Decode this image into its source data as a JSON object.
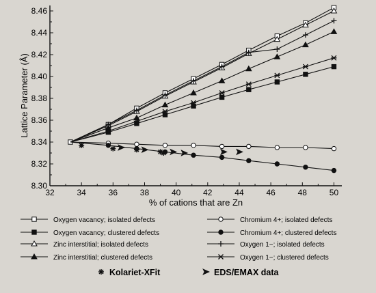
{
  "chart_data": {
    "type": "line",
    "title": "",
    "xlabel": "% of cations that are Zn",
    "ylabel": "Lattice Parameter (Å)",
    "xlim": [
      32,
      50.5
    ],
    "ylim": [
      8.3,
      8.465
    ],
    "x_ticks": [
      "32",
      "34",
      "36",
      "38",
      "40",
      "42",
      "44",
      "46",
      "48",
      "50"
    ],
    "y_ticks": [
      "8.30",
      "8.32",
      "8.34",
      "8.36",
      "8.38",
      "8.40",
      "8.42",
      "8.44",
      "8.46"
    ],
    "series": [
      {
        "name": "Oxygen vacancy; isolated defects",
        "marker": "square-open",
        "x": [
          33.3,
          35.7,
          37.5,
          39.3,
          41.1,
          42.9,
          44.6,
          46.4,
          48.2,
          50.0
        ],
        "y": [
          8.34,
          8.356,
          8.371,
          8.385,
          8.398,
          8.411,
          8.424,
          8.437,
          8.449,
          8.463
        ]
      },
      {
        "name": "Oxygen vacancy; clustered defects",
        "marker": "square-filled",
        "x": [
          33.3,
          35.7,
          37.5,
          39.3,
          41.1,
          42.9,
          44.6,
          46.4,
          48.2,
          50.0
        ],
        "y": [
          8.34,
          8.349,
          8.357,
          8.365,
          8.373,
          8.381,
          8.388,
          8.395,
          8.402,
          8.409
        ]
      },
      {
        "name": "Zinc interstitial; isolated defects",
        "marker": "triangle-open",
        "x": [
          33.3,
          35.7,
          37.5,
          39.3,
          41.1,
          42.9,
          44.6,
          46.4,
          48.2,
          50.0
        ],
        "y": [
          8.34,
          8.355,
          8.368,
          8.382,
          8.395,
          8.408,
          8.421,
          8.434,
          8.447,
          8.46
        ]
      },
      {
        "name": "Zinc interstitial; clustered defects",
        "marker": "triangle-filled",
        "x": [
          33.3,
          35.7,
          37.5,
          39.3,
          41.1,
          42.9,
          44.6,
          46.4,
          48.2,
          50.0
        ],
        "y": [
          8.34,
          8.353,
          8.362,
          8.374,
          8.385,
          8.396,
          8.407,
          8.418,
          8.429,
          8.441
        ]
      },
      {
        "name": "Chromium 4+; isolated defects",
        "marker": "circle-open",
        "x": [
          33.3,
          35.7,
          37.5,
          39.3,
          41.1,
          42.9,
          44.6,
          46.4,
          48.2,
          50.0
        ],
        "y": [
          8.34,
          8.339,
          8.338,
          8.337,
          8.337,
          8.336,
          8.336,
          8.335,
          8.335,
          8.334
        ]
      },
      {
        "name": "Chromium 4+; clustered defects",
        "marker": "circle-filled",
        "x": [
          33.3,
          35.7,
          37.5,
          39.3,
          41.1,
          42.9,
          44.6,
          46.4,
          48.2,
          50.0
        ],
        "y": [
          8.34,
          8.337,
          8.334,
          8.331,
          8.328,
          8.326,
          8.323,
          8.32,
          8.317,
          8.314
        ]
      },
      {
        "name": "Oxygen 1−; isolated defects",
        "marker": "plus",
        "x": [
          33.3,
          35.7,
          37.5,
          39.3,
          41.1,
          42.9,
          44.6,
          46.4,
          48.2,
          50.0
        ],
        "y": [
          8.34,
          8.356,
          8.369,
          8.383,
          8.396,
          8.409,
          8.422,
          8.425,
          8.438,
          8.451
        ]
      },
      {
        "name": "Oxygen 1−; clustered defects",
        "marker": "star",
        "x": [
          33.3,
          35.7,
          37.5,
          39.3,
          41.1,
          42.9,
          44.6,
          46.4,
          48.2,
          50.0
        ],
        "y": [
          8.34,
          8.35,
          8.359,
          8.368,
          8.376,
          8.385,
          8.393,
          8.401,
          8.409,
          8.417
        ]
      },
      {
        "name": "Kolariet-XFit",
        "marker": "asterisk",
        "x": [
          34.0,
          36.0,
          37.5,
          39.0,
          39.2
        ],
        "y": [
          8.337,
          8.334,
          8.333,
          8.331,
          8.33
        ]
      },
      {
        "name": "EDS/EMAX data",
        "marker": "arrowhead",
        "x": [
          36.5,
          38.0,
          39.8,
          40.5,
          43.0,
          44.0
        ],
        "y": [
          8.335,
          8.333,
          8.331,
          8.33,
          8.331,
          8.331
        ]
      }
    ],
    "legend": {
      "placement": "bottom",
      "entries": [
        {
          "label": "Oxygen vacancy; isolated defects",
          "marker": "square-open"
        },
        {
          "label": "Chromium 4+; isolated defects",
          "marker": "circle-open"
        },
        {
          "label": "Oxygen vacancy; clustered defects",
          "marker": "square-filled"
        },
        {
          "label": "Chromium 4+; clustered defects",
          "marker": "circle-filled"
        },
        {
          "label": "Zinc interstitial; isolated defects",
          "marker": "triangle-open"
        },
        {
          "label": "Oxygen 1−; isolated defects",
          "marker": "plus"
        },
        {
          "label": "Zinc interstitial; clustered defects",
          "marker": "triangle-filled"
        },
        {
          "label": "Oxygen 1−; clustered defects",
          "marker": "star"
        }
      ],
      "bold_entries": [
        {
          "label": "Kolariet-XFit",
          "marker": "asterisk"
        },
        {
          "label": "EDS/EMAX data",
          "marker": "arrowhead"
        }
      ]
    }
  }
}
